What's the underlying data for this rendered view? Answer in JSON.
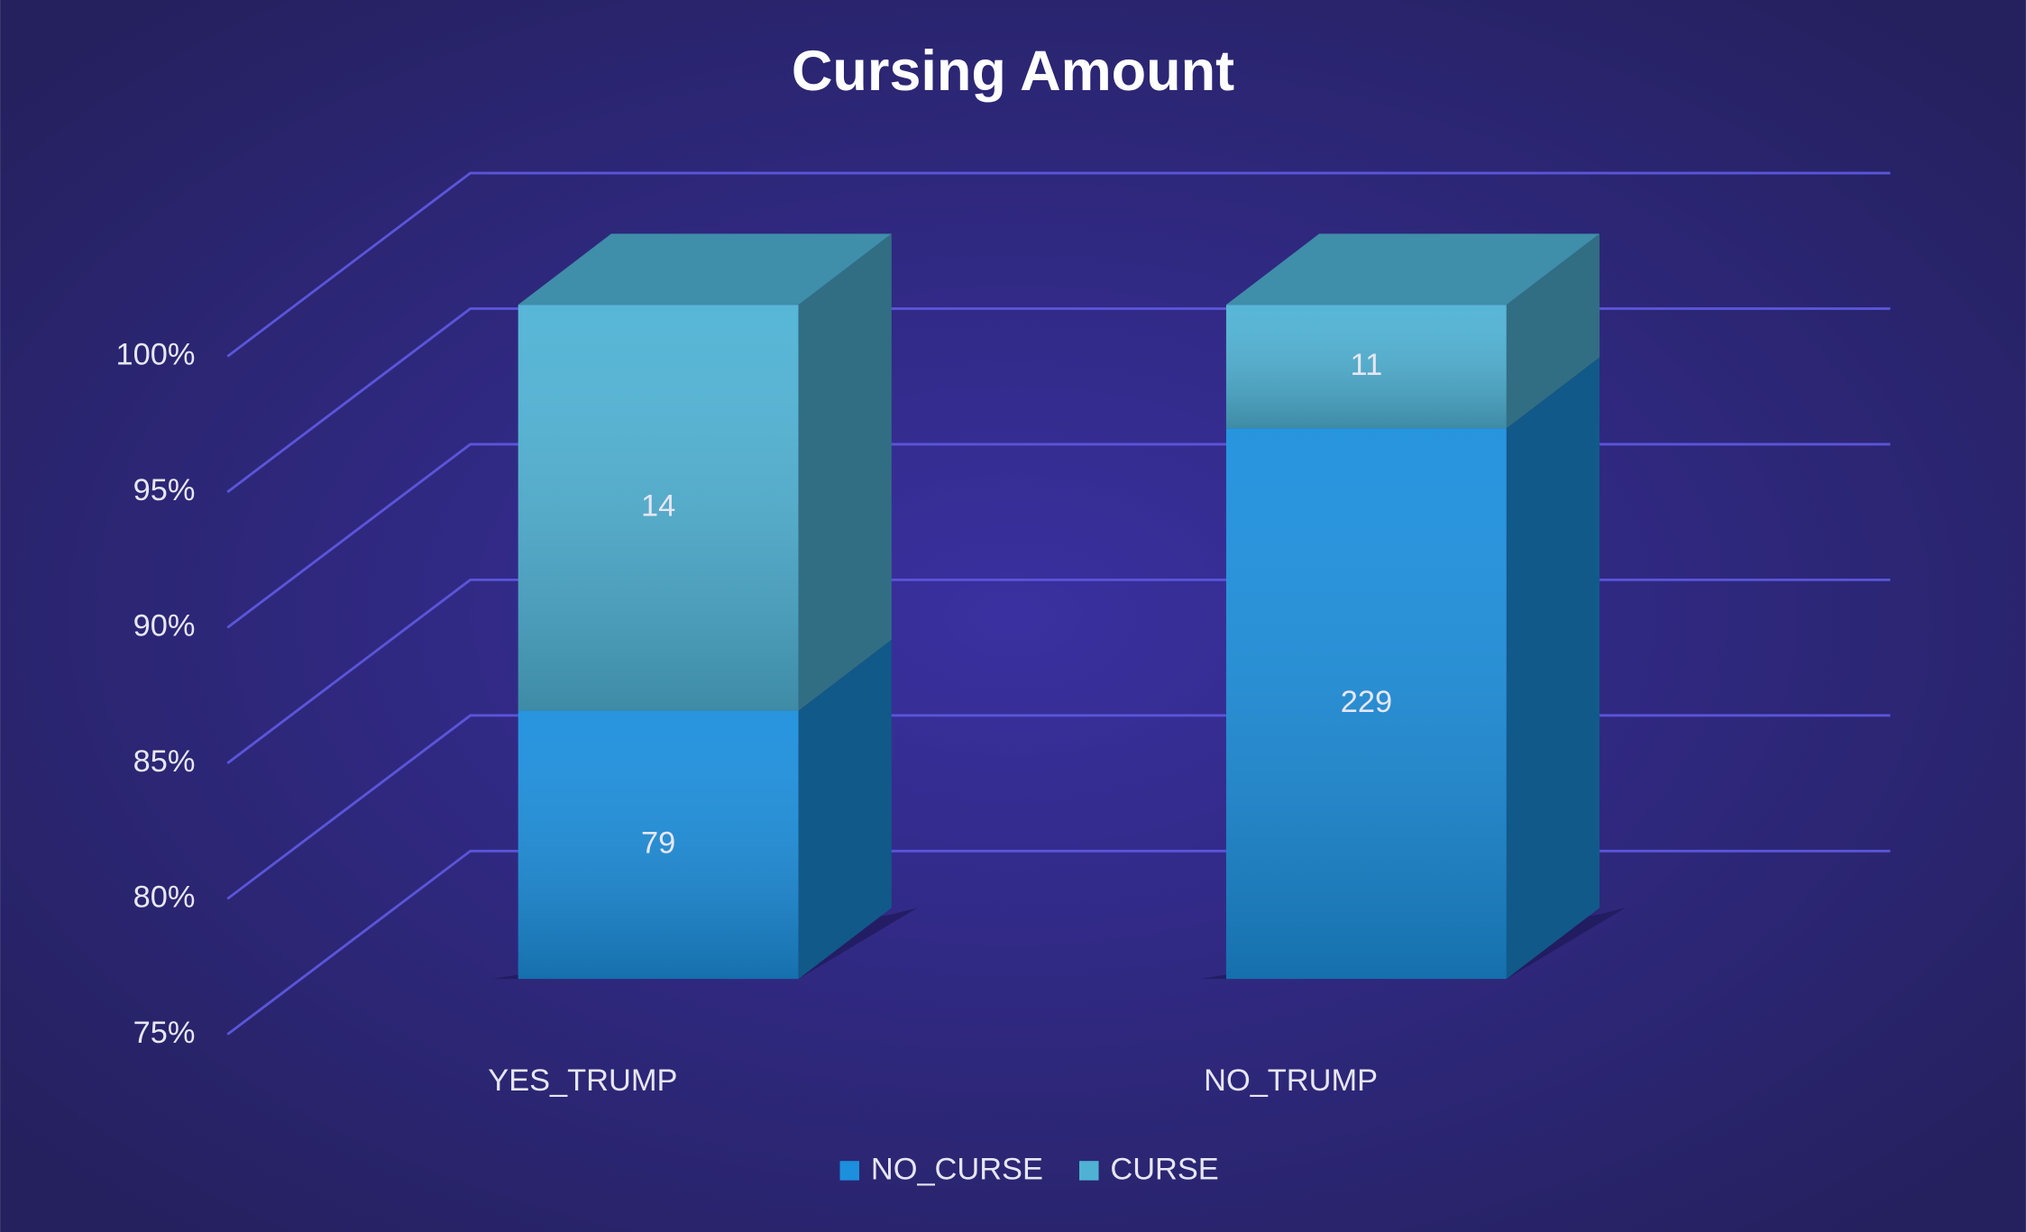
{
  "chart_data": {
    "type": "bar3d_percent_stacked",
    "title": "Cursing Amount",
    "categories": [
      "YES_TRUMP",
      "NO_TRUMP"
    ],
    "series": [
      {
        "name": "NO_CURSE",
        "color": "#1c8fdd",
        "values": [
          79,
          229
        ]
      },
      {
        "name": "CURSE",
        "color": "#4fb2d4",
        "values": [
          14,
          11
        ]
      }
    ],
    "ylim": [
      75,
      100
    ],
    "yticks": [
      {
        "value": 75,
        "label": "75%"
      },
      {
        "value": 80,
        "label": "80%"
      },
      {
        "value": 85,
        "label": "85%"
      },
      {
        "value": 90,
        "label": "90%"
      },
      {
        "value": 95,
        "label": "95%"
      },
      {
        "value": 100,
        "label": "100%"
      }
    ],
    "grid": true,
    "legend": "bottom"
  }
}
